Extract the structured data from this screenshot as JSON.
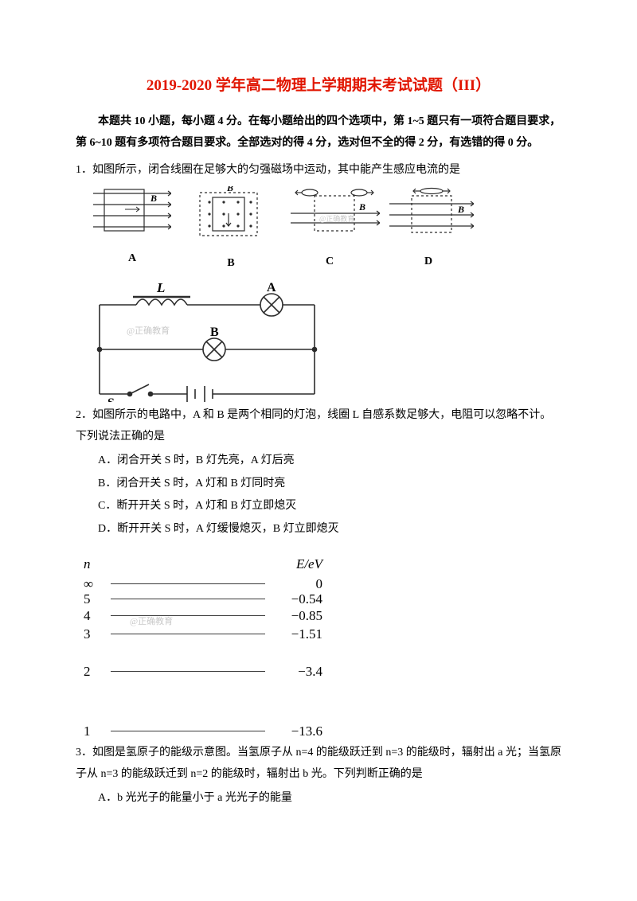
{
  "title_color": "#e11500",
  "title": "2019-2020 学年高二物理上学期期末考试试题（III）",
  "instructions": "本题共 10 小题，每小题 4 分。在每小题给出的四个选项中，第 1~5 题只有一项符合题目要求，第 6~10 题有多项符合题目要求。全部选对的得 4 分，选对但不全的得 2 分，有选错的得 0 分。",
  "watermark": "@正确教育",
  "q1": {
    "num": "1．",
    "text": "如图所示，闭合线圈在足够大的匀强磁场中运动，其中能产生感应电流的是",
    "labels": {
      "A": "A",
      "B": "B",
      "C": "C",
      "D": "D",
      "Bfield": "B"
    }
  },
  "q2": {
    "num": "2．",
    "text": "如图所示的电路中，A 和 B 是两个相同的灯泡，线圈 L 自感系数足够大，电阻可以忽略不计。下列说法正确的是",
    "labels": {
      "L": "L",
      "A": "A",
      "B": "B",
      "S": "S"
    },
    "opts": {
      "A": "A．闭合开关 S 时，B 灯先亮，A 灯后亮",
      "B": "B．闭合开关 S 时，A 灯和 B 灯同时亮",
      "C": "C．断开开关 S 时，A 灯和 B 灯立即熄灭",
      "D": "D．断开开关 S 时，A 灯缓慢熄灭，B 灯立即熄灭"
    }
  },
  "q3": {
    "num": "3．",
    "text": "如图是氢原子的能级示意图。当氢原子从 n=4 的能级跃迁到 n=3 的能级时，辐射出 a 光；当氢原子从 n=3 的能级跃迁到 n=2 的能级时，辐射出 b 光。下列判断正确的是",
    "header": {
      "n": "n",
      "E": "E/eV"
    },
    "levels": [
      {
        "n": "∞",
        "e": "0",
        "gap": 0
      },
      {
        "n": "5",
        "e": "−0.54",
        "gap": 2
      },
      {
        "n": "4",
        "e": "−0.85",
        "gap": 4
      },
      {
        "n": "3",
        "e": "−1.51",
        "gap": 6
      },
      {
        "n": "2",
        "e": "−3.4",
        "gap": 30
      },
      {
        "n": "1",
        "e": "−13.6",
        "gap": 58
      }
    ],
    "optA": "A．b 光光子的能量小于 a 光光子的能量"
  },
  "colors": {
    "stroke": "#2c2c2c",
    "light": "#888888",
    "wm": "#c9c9c9"
  }
}
